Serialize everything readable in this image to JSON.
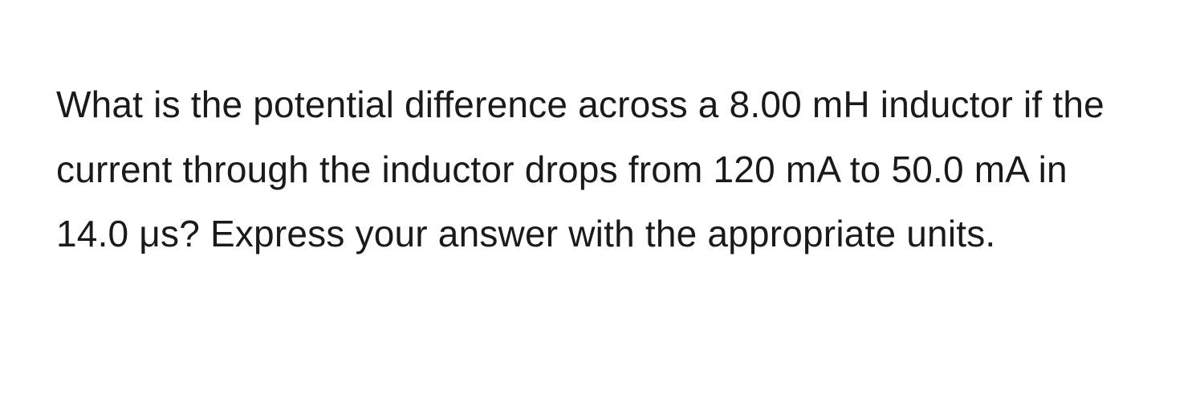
{
  "question": {
    "text": "What is the potential difference across a 8.00 mH inductor if the current through the inductor drops from 120 mA to 50.0 mA in 14.0 μs? Express your answer with the appropriate units.",
    "font_size_pt": 34,
    "line_height": 1.75,
    "text_color": "#1a1a1a",
    "background_color": "#ffffff",
    "font_weight": 400
  }
}
